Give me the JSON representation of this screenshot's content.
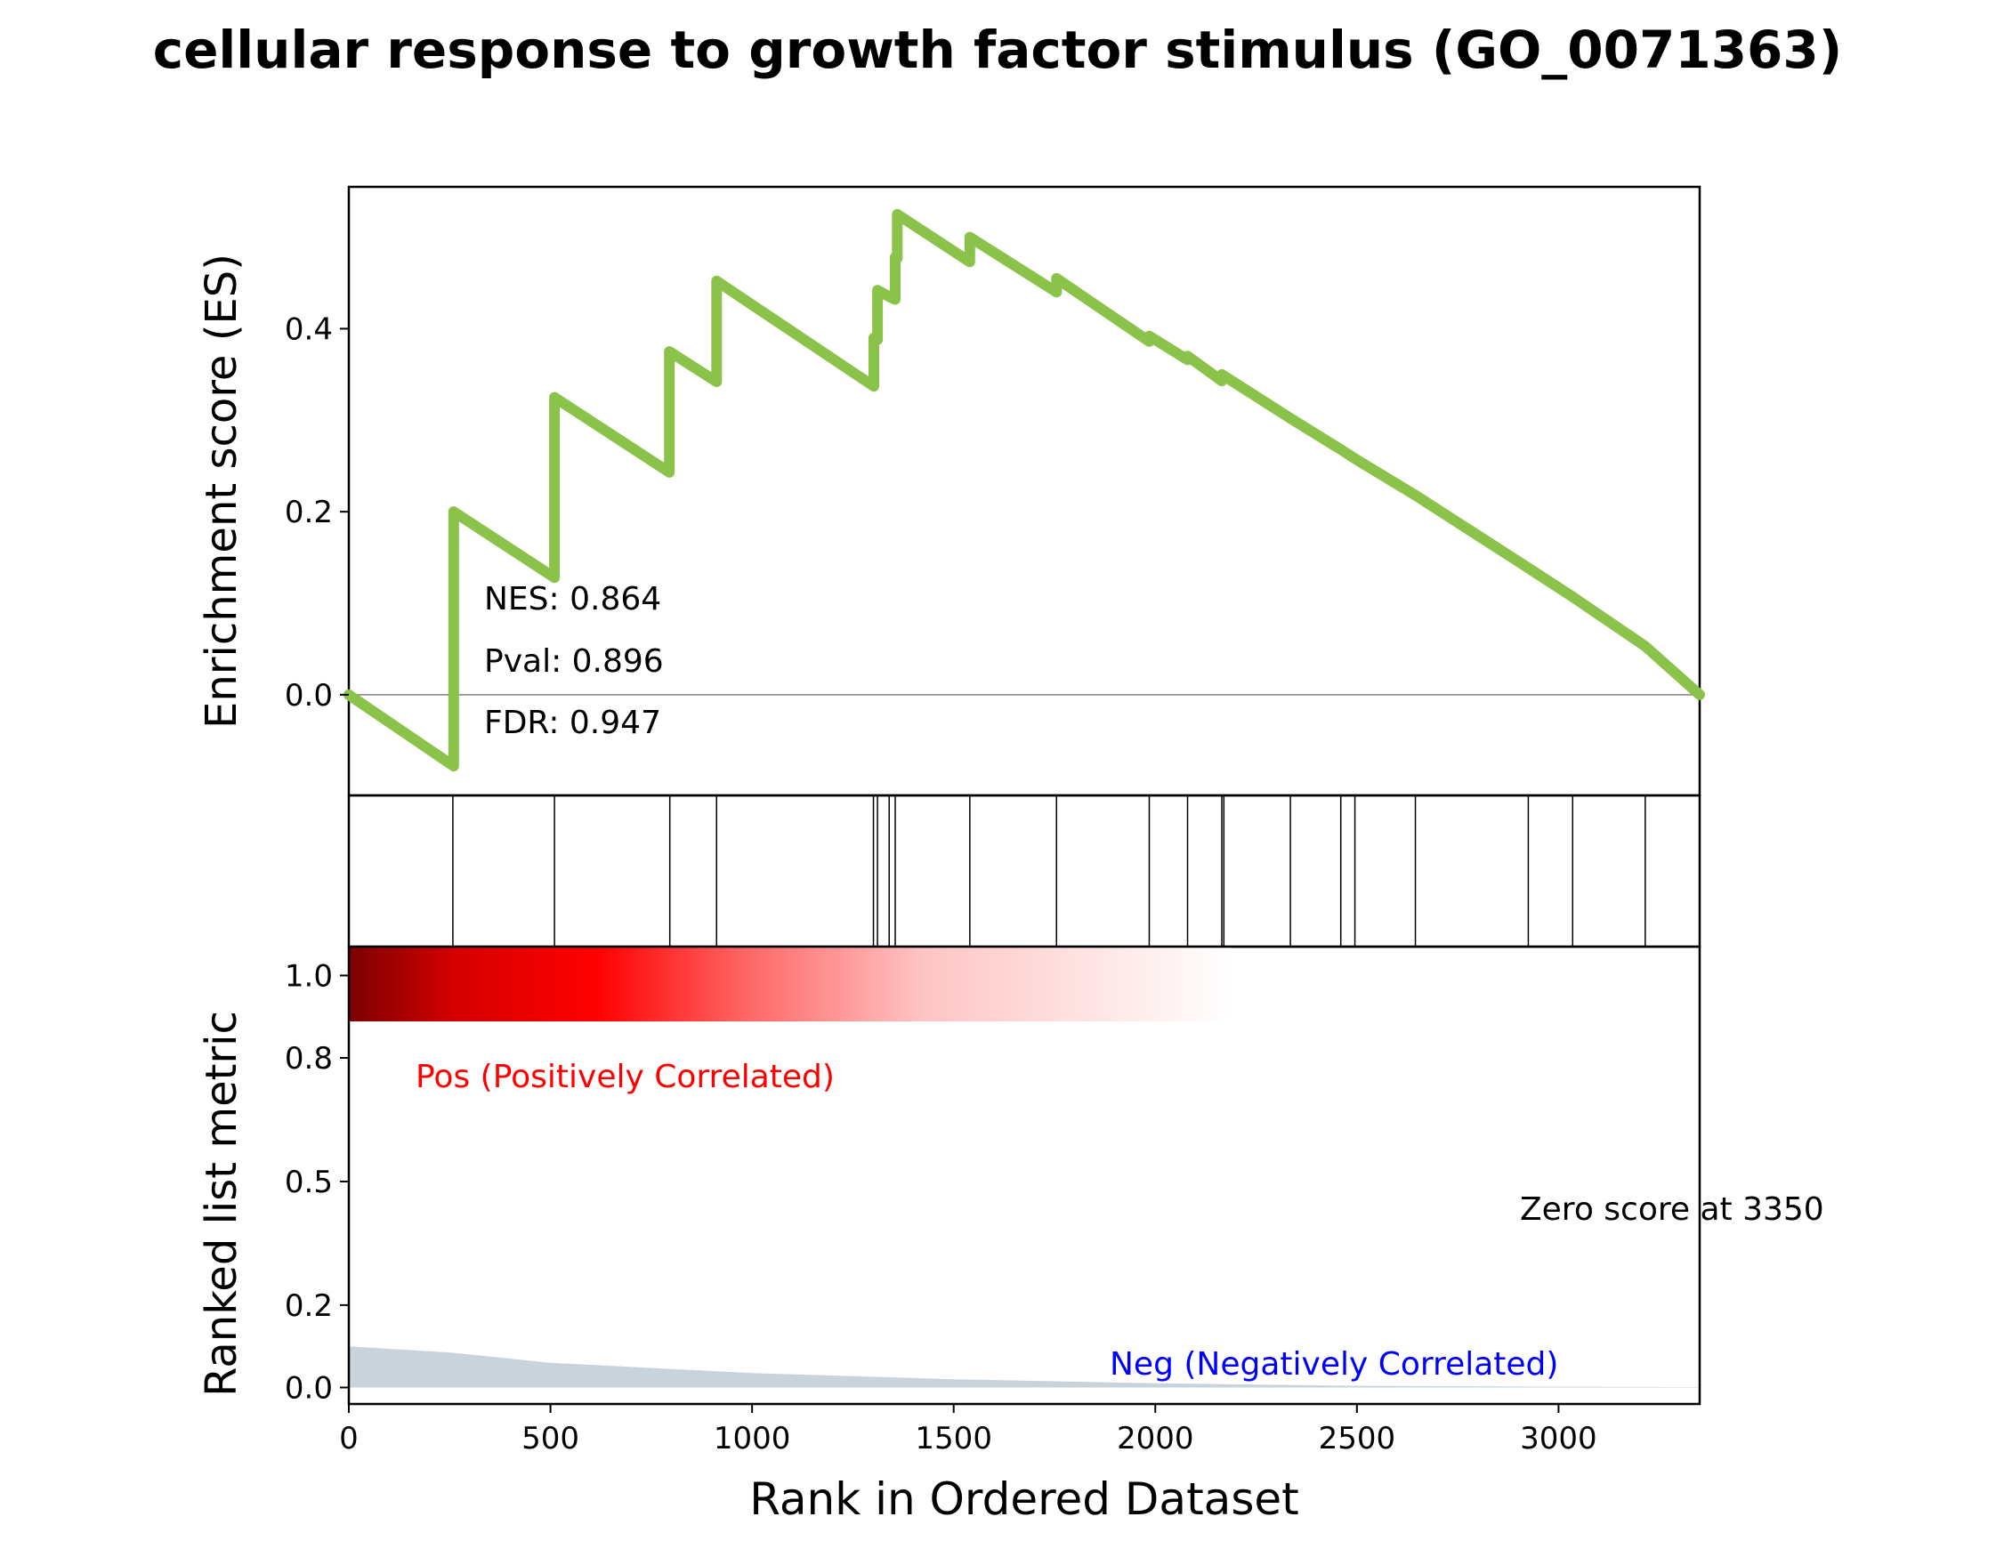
{
  "chart_data": {
    "type": "line",
    "title": "cellular response to growth factor stimulus (GO_0071363)",
    "xlabel": "Rank in Ordered Dataset",
    "es_ylabel": "Enrichment score (ES)",
    "metric_ylabel": "Ranked list metric",
    "xlim": [
      0,
      3350
    ],
    "x_ticks": [
      0,
      500,
      1000,
      1500,
      2000,
      2500,
      3000
    ],
    "x_tick_labels": [
      "0",
      "500",
      "1000",
      "1500",
      "2000",
      "2500",
      "3000"
    ],
    "es_ylim": [
      -0.11,
      0.555
    ],
    "es_ticks": [
      0.0,
      0.2,
      0.4
    ],
    "es_tick_labels": [
      "0.0",
      "0.2",
      "0.4"
    ],
    "es_series": {
      "color": "#8bc34a",
      "points": [
        [
          0,
          0.0
        ],
        [
          260,
          -0.078
        ],
        [
          260,
          0.2
        ],
        [
          510,
          0.128
        ],
        [
          510,
          0.325
        ],
        [
          795,
          0.243
        ],
        [
          795,
          0.375
        ],
        [
          912,
          0.342
        ],
        [
          912,
          0.452
        ],
        [
          1302,
          0.337
        ],
        [
          1302,
          0.39
        ],
        [
          1311,
          0.388
        ],
        [
          1311,
          0.442
        ],
        [
          1340,
          0.435
        ],
        [
          1340,
          0.435
        ],
        [
          1355,
          0.432
        ],
        [
          1355,
          0.478
        ],
        [
          1360,
          0.477
        ],
        [
          1360,
          0.525
        ],
        [
          1540,
          0.473
        ],
        [
          1540,
          0.5
        ],
        [
          1755,
          0.44
        ],
        [
          1755,
          0.455
        ],
        [
          1985,
          0.386
        ],
        [
          1985,
          0.392
        ],
        [
          2080,
          0.366
        ],
        [
          2080,
          0.37
        ],
        [
          2165,
          0.343
        ],
        [
          2165,
          0.35
        ],
        [
          2335,
          0.302
        ],
        [
          2460,
          0.268
        ],
        [
          2495,
          0.258
        ],
        [
          2645,
          0.218
        ],
        [
          2920,
          0.14
        ],
        [
          3035,
          0.107
        ],
        [
          3215,
          0.053
        ],
        [
          3350,
          0.0
        ]
      ]
    },
    "hits": [
      258,
      510,
      796,
      912,
      1301,
      1311,
      1340,
      1355,
      1540,
      1755,
      1985,
      2080,
      2165,
      2170,
      2335,
      2460,
      2495,
      2645,
      2925,
      3035,
      3215
    ],
    "stats": {
      "nes": "NES: 0.864",
      "pval": "Pval: 0.896",
      "fdr": "FDR: 0.947"
    },
    "metric_ylim": [
      -0.04,
      1.07
    ],
    "metric_ticks": [
      0.0,
      0.2,
      0.5,
      0.8,
      1.0
    ],
    "metric_tick_labels": [
      "0.0",
      "0.2",
      "0.5",
      "0.8",
      "1.0"
    ],
    "metric_series": {
      "color": "#c8d3dc",
      "points": [
        [
          0,
          0.1
        ],
        [
          250,
          0.085
        ],
        [
          500,
          0.06
        ],
        [
          1000,
          0.035
        ],
        [
          1500,
          0.02
        ],
        [
          2000,
          0.01
        ],
        [
          2500,
          0.004
        ],
        [
          3000,
          0.002
        ],
        [
          3350,
          0.001
        ]
      ]
    },
    "heatmap_colors": [
      "#7a0000",
      "#d40000",
      "#ff0000",
      "#ff6666",
      "#ffc4c4",
      "#ffffff"
    ],
    "heatmap_extent": [
      0,
      2190
    ],
    "pos_label": "Pos (Positively Correlated)",
    "pos_color": "#ff0000",
    "neg_label": "Neg (Negatively Correlated)",
    "neg_color": "#0000ff",
    "zero_label": "Zero score at 3350"
  }
}
